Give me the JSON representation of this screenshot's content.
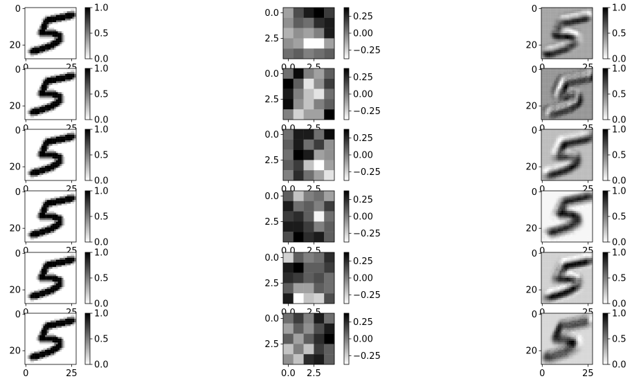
{
  "chart_data": {
    "type": "heatmap",
    "layout": {
      "rows": 6,
      "columns": [
        "input",
        "kernel",
        "feature_map"
      ]
    },
    "colormap": "gray_r",
    "columns": [
      {
        "key": "input",
        "image_size": [
          28,
          28
        ],
        "x_ticks": [
          {
            "value": 0,
            "label": "0"
          },
          {
            "value": 25,
            "label": "25"
          }
        ],
        "y_ticks": [
          {
            "value": 0,
            "label": "0"
          },
          {
            "value": 20,
            "label": "20"
          }
        ],
        "colorbar": {
          "range": [
            0.0,
            1.0
          ],
          "ticks": [
            {
              "value": 0.0,
              "label": "0.0"
            },
            {
              "value": 0.5,
              "label": "0.5"
            },
            {
              "value": 1.0,
              "label": "1.0"
            }
          ]
        }
      },
      {
        "key": "kernel",
        "image_size": [
          5,
          5
        ],
        "x_ticks": [
          {
            "value": 0.0,
            "label": "0.0"
          },
          {
            "value": 2.5,
            "label": "2.5"
          }
        ],
        "y_ticks": [
          {
            "value": 0.0,
            "label": "0.0"
          },
          {
            "value": 2.5,
            "label": "2.5"
          }
        ],
        "colorbar": {
          "range": [
            -0.38,
            0.38
          ],
          "ticks": [
            {
              "value": -0.25,
              "label": "−0.25"
            },
            {
              "value": 0.0,
              "label": "0.00"
            },
            {
              "value": 0.25,
              "label": "0.25"
            }
          ]
        }
      },
      {
        "key": "feature_map",
        "image_size": [
          28,
          28
        ],
        "x_ticks": [
          {
            "value": 0,
            "label": "0"
          },
          {
            "value": 25,
            "label": "25"
          }
        ],
        "y_ticks": [
          {
            "value": 0,
            "label": "0"
          },
          {
            "value": 20,
            "label": "20"
          }
        ],
        "colorbar": {
          "range": [
            0.0,
            1.0
          ],
          "ticks": [
            {
              "value": 0.0,
              "label": "0.0"
            },
            {
              "value": 0.5,
              "label": "0.5"
            },
            {
              "value": 1.0,
              "label": "1.0"
            }
          ]
        }
      }
    ],
    "kernels": [
      [
        [
          -0.1,
          0.15,
          0.3,
          0.38,
          0.2
        ],
        [
          -0.05,
          0.1,
          0.05,
          0.25,
          0.3
        ],
        [
          -0.15,
          -0.05,
          -0.1,
          0.0,
          0.3
        ],
        [
          -0.05,
          -0.1,
          -0.38,
          -0.38,
          -0.1
        ],
        [
          0.05,
          0.1,
          0.0,
          0.05,
          0.1
        ]
      ],
      [
        [
          0.05,
          0.35,
          0.0,
          -0.1,
          0.1
        ],
        [
          0.38,
          0.1,
          -0.3,
          -0.05,
          0.2
        ],
        [
          0.3,
          0.0,
          -0.2,
          -0.3,
          0.05
        ],
        [
          0.35,
          -0.05,
          -0.2,
          0.0,
          0.1
        ],
        [
          0.0,
          -0.25,
          -0.1,
          -0.1,
          0.38
        ]
      ],
      [
        [
          0.05,
          0.3,
          0.3,
          0.05,
          0.35
        ],
        [
          0.1,
          0.3,
          0.05,
          0.2,
          -0.05
        ],
        [
          0.05,
          0.38,
          0.3,
          -0.1,
          -0.05
        ],
        [
          0.1,
          0.2,
          -0.2,
          -0.38,
          -0.1
        ],
        [
          0.0,
          0.25,
          0.05,
          -0.1,
          -0.3
        ]
      ],
      [
        [
          0.1,
          -0.2,
          0.0,
          0.05,
          -0.1
        ],
        [
          0.3,
          0.05,
          0.1,
          0.0,
          0.2
        ],
        [
          0.2,
          0.25,
          0.1,
          -0.35,
          0.05
        ],
        [
          0.3,
          0.3,
          0.2,
          0.0,
          0.1
        ],
        [
          0.15,
          0.38,
          0.25,
          0.3,
          0.1
        ]
      ],
      [
        [
          -0.25,
          0.1,
          0.0,
          0.05,
          0.25
        ],
        [
          0.3,
          0.38,
          0.1,
          0.1,
          0.2
        ],
        [
          0.25,
          0.2,
          0.1,
          0.15,
          0.05
        ],
        [
          0.1,
          -0.1,
          -0.1,
          0.1,
          0.05
        ],
        [
          0.3,
          -0.38,
          -0.2,
          -0.25,
          0.15
        ]
      ],
      [
        [
          0.05,
          0.2,
          0.0,
          0.3,
          0.05
        ],
        [
          -0.1,
          0.1,
          -0.05,
          0.15,
          0.3
        ],
        [
          0.1,
          -0.1,
          0.1,
          0.25,
          0.38
        ],
        [
          -0.2,
          0.0,
          -0.2,
          0.2,
          0.1
        ],
        [
          -0.05,
          -0.2,
          0.25,
          0.3,
          0.1
        ]
      ]
    ]
  }
}
